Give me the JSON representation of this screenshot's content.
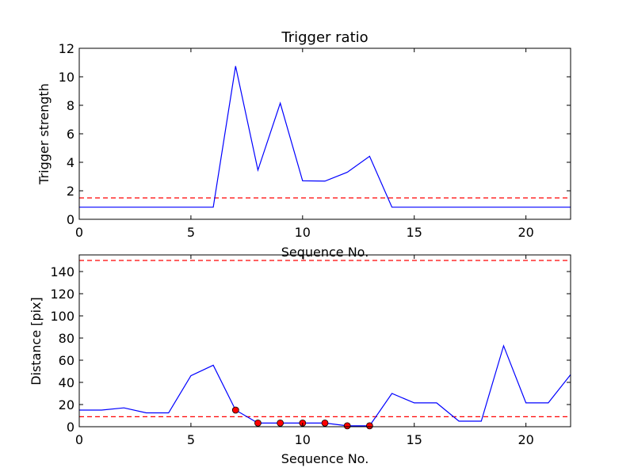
{
  "chart_data": [
    {
      "type": "line",
      "title": "Trigger ratio",
      "xlabel": "Sequence No.",
      "ylabel": "Trigger strength",
      "xlim": [
        0,
        22
      ],
      "ylim": [
        0,
        12
      ],
      "xticks": [
        0,
        5,
        10,
        15,
        20
      ],
      "yticks": [
        0,
        2,
        4,
        6,
        8,
        10,
        12
      ],
      "grid": false,
      "series": [
        {
          "x": [
            0,
            1,
            2,
            3,
            4,
            5,
            6,
            7,
            8,
            9,
            10,
            11,
            12,
            13,
            14,
            15,
            16,
            17,
            18,
            19,
            20,
            21,
            22
          ],
          "values": [
            0.85,
            0.85,
            0.85,
            0.85,
            0.85,
            0.85,
            0.85,
            10.75,
            3.45,
            8.15,
            2.7,
            2.68,
            3.3,
            4.42,
            0.85,
            0.85,
            0.85,
            0.85,
            0.85,
            0.85,
            0.85,
            0.85,
            0.85
          ],
          "color": "#0000ff",
          "style": "solid"
        }
      ],
      "reference_lines": [
        {
          "y": 1.5,
          "color": "#ff0000",
          "style": "dashed"
        }
      ]
    },
    {
      "type": "line",
      "title": "",
      "xlabel": "Sequence No.",
      "ylabel": "Distance [pix]",
      "xlim": [
        0,
        22
      ],
      "ylim": [
        0,
        155
      ],
      "xticks": [
        0,
        5,
        10,
        15,
        20
      ],
      "yticks": [
        0,
        20,
        40,
        60,
        80,
        100,
        120,
        140
      ],
      "grid": false,
      "series": [
        {
          "x": [
            0,
            1,
            2,
            3,
            4,
            5,
            6,
            7,
            8,
            9,
            10,
            11,
            12,
            13,
            14,
            15,
            16,
            17,
            18,
            19,
            20,
            21,
            22
          ],
          "values": [
            15,
            15,
            17,
            12.5,
            12.5,
            46,
            55.5,
            15,
            3.3,
            3.3,
            3.3,
            3.3,
            0.8,
            0.8,
            30,
            21.5,
            21.5,
            5,
            5,
            73,
            21.5,
            21.5,
            47
          ],
          "color": "#0000ff",
          "style": "solid"
        },
        {
          "x": [
            7,
            8,
            9,
            10,
            11,
            12,
            13
          ],
          "values": [
            15,
            3.3,
            3.3,
            3.3,
            3.3,
            0.8,
            0.8
          ],
          "color": "#ff0000",
          "style": "markers"
        }
      ],
      "reference_lines": [
        {
          "y": 150,
          "color": "#ff0000",
          "style": "dashed"
        },
        {
          "y": 9,
          "color": "#ff0000",
          "style": "dashed"
        }
      ]
    }
  ]
}
